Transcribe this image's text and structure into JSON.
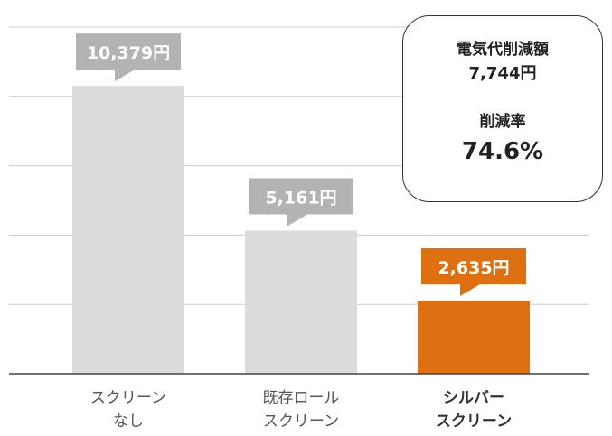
{
  "chart_data": {
    "type": "bar",
    "categories": [
      [
        "スクリーン",
        "なし"
      ],
      [
        "既存ロール",
        "スクリーン"
      ],
      [
        "シルバー",
        "スクリーン"
      ]
    ],
    "values": [
      10379,
      5161,
      2635
    ],
    "value_labels": [
      "10,379円",
      "5,161円",
      "2,635円"
    ],
    "unit": "円",
    "ylim": [
      0,
      12500
    ],
    "grid": true,
    "bar_colors": [
      "#dcdcdc",
      "#dcdcdc",
      "#de7011"
    ],
    "callout_colors": [
      "#b3b3b3",
      "#b3b3b3",
      "#de7011"
    ],
    "highlight_index": 2,
    "category_label_color": "#555555",
    "highlight_label_color": "#333333"
  },
  "summary": {
    "savings_label": "電気代削減額",
    "savings_value": "7,744円",
    "rate_label": "削減率",
    "rate_value": "74.6%"
  }
}
